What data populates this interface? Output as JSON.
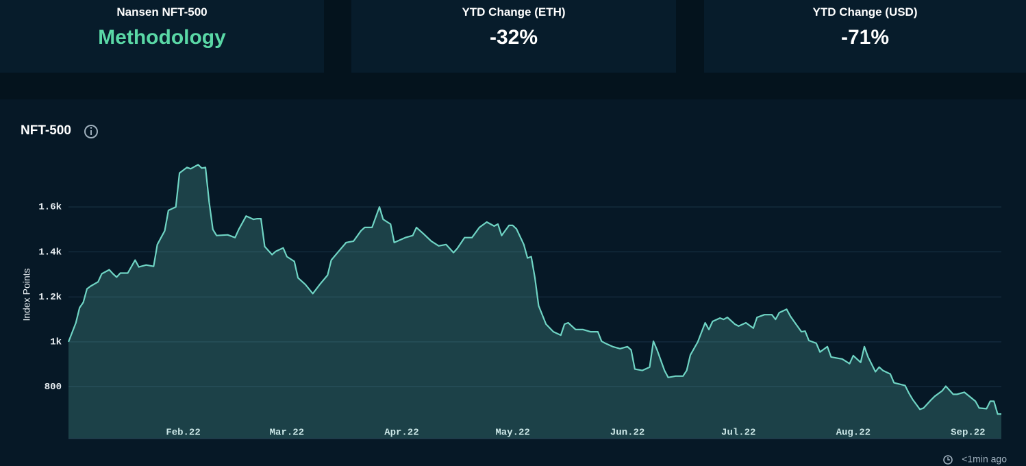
{
  "cards": [
    {
      "label": "Nansen NFT-500",
      "value": "Methodology"
    },
    {
      "label": "YTD Change (ETH)",
      "value": "-32%"
    },
    {
      "label": "YTD Change (USD)",
      "value": "-71%"
    }
  ],
  "updated": "<1min ago",
  "chart_data": {
    "type": "line",
    "title": "NFT-500",
    "y_label": "Index Points",
    "color": "#6fd4c4",
    "grid": true,
    "x": [
      0,
      2,
      3,
      4,
      5,
      6,
      8,
      9,
      11,
      12,
      13,
      14,
      16,
      18,
      19,
      21,
      23,
      24,
      26,
      27,
      29,
      30,
      32,
      33,
      35,
      36,
      37,
      38,
      39,
      40,
      43,
      45,
      46,
      48,
      50,
      51,
      52,
      53,
      55,
      56,
      58,
      59,
      61,
      62,
      64,
      66,
      68,
      70,
      71,
      73,
      75,
      77,
      79,
      80,
      82,
      84,
      85,
      87,
      88,
      91,
      93,
      94,
      96,
      98,
      100,
      102,
      104,
      105,
      107,
      109,
      111,
      113,
      115,
      116,
      117,
      119,
      120,
      121,
      123,
      124,
      125,
      126,
      127,
      129,
      131,
      133,
      134,
      135,
      137,
      139,
      141,
      143,
      144,
      145,
      147,
      149,
      151,
      152,
      153,
      155,
      157,
      158,
      159,
      161,
      162,
      164,
      166,
      167,
      168,
      170,
      172,
      173,
      174,
      176,
      177,
      178,
      180,
      181,
      183,
      185,
      186,
      188,
      190,
      191,
      192,
      194,
      195,
      196,
      198,
      199,
      200,
      202,
      203,
      205,
      206,
      208,
      209,
      211,
      212,
      214,
      215,
      216,
      218,
      219,
      220,
      222,
      223,
      226,
      227,
      228,
      230,
      231,
      233,
      234,
      236,
      237,
      239,
      240,
      242,
      245,
      246,
      248,
      249,
      250,
      251,
      252
    ],
    "values": [
      1000,
      1085,
      1152,
      1176,
      1236,
      1248,
      1267,
      1303,
      1321,
      1303,
      1288,
      1306,
      1306,
      1364,
      1333,
      1342,
      1336,
      1433,
      1494,
      1585,
      1600,
      1751,
      1776,
      1770,
      1788,
      1773,
      1776,
      1621,
      1500,
      1473,
      1476,
      1464,
      1500,
      1560,
      1545,
      1548,
      1548,
      1424,
      1388,
      1403,
      1418,
      1379,
      1358,
      1285,
      1255,
      1215,
      1258,
      1297,
      1364,
      1403,
      1442,
      1448,
      1494,
      1509,
      1509,
      1600,
      1545,
      1524,
      1442,
      1464,
      1473,
      1509,
      1479,
      1448,
      1427,
      1433,
      1397,
      1415,
      1464,
      1464,
      1509,
      1533,
      1515,
      1524,
      1473,
      1518,
      1518,
      1503,
      1433,
      1373,
      1379,
      1285,
      1161,
      1079,
      1045,
      1030,
      1079,
      1085,
      1055,
      1055,
      1045,
      1045,
      1003,
      994,
      979,
      970,
      979,
      964,
      879,
      873,
      888,
      1003,
      964,
      873,
      842,
      848,
      848,
      873,
      942,
      1000,
      1085,
      1055,
      1091,
      1106,
      1100,
      1109,
      1079,
      1070,
      1085,
      1061,
      1109,
      1121,
      1121,
      1100,
      1130,
      1145,
      1115,
      1091,
      1045,
      1048,
      1006,
      994,
      955,
      979,
      933,
      927,
      924,
      903,
      939,
      909,
      979,
      933,
      867,
      888,
      873,
      857,
      818,
      806,
      773,
      745,
      700,
      706,
      742,
      758,
      782,
      803,
      767,
      767,
      776,
      736,
      706,
      703,
      736,
      736,
      679,
      679
    ],
    "xlim": [
      0,
      252
    ],
    "xticks": [
      {
        "value": 31,
        "label": "Feb.22"
      },
      {
        "value": 59,
        "label": "Mar.22"
      },
      {
        "value": 90,
        "label": "Apr.22"
      },
      {
        "value": 120,
        "label": "May.22"
      },
      {
        "value": 151,
        "label": "Jun.22"
      },
      {
        "value": 181,
        "label": "Jul.22"
      },
      {
        "value": 212,
        "label": "Aug.22"
      },
      {
        "value": 243,
        "label": "Sep.22"
      }
    ],
    "ylim": [
      570,
      1850
    ],
    "yticks": [
      800,
      {
        "value": 1000,
        "label": "1k"
      },
      {
        "value": 1200,
        "label": "1.2k"
      },
      {
        "value": 1400,
        "label": "1.4k"
      },
      {
        "value": 1600,
        "label": "1.6k"
      }
    ]
  }
}
